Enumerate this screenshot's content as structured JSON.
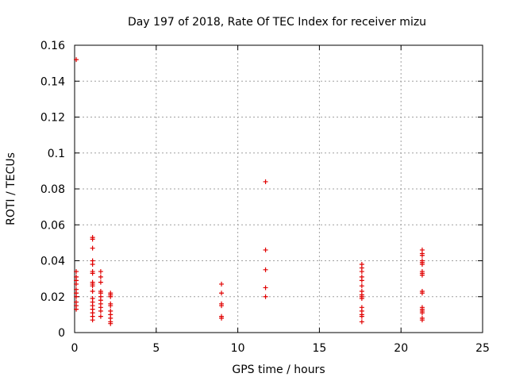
{
  "chart_data": {
    "type": "scatter",
    "title": "Day 197 of 2018, Rate Of TEC Index for receiver mizu",
    "xlabel": "GPS time / hours",
    "ylabel": "ROTI / TECUs",
    "xlim": [
      0,
      25
    ],
    "ylim": [
      0,
      0.16
    ],
    "x_ticks": [
      0,
      5,
      10,
      15,
      20,
      25
    ],
    "y_ticks": [
      0,
      0.02,
      0.04,
      0.06,
      0.08,
      0.1,
      0.12,
      0.14,
      0.16
    ],
    "x_tick_labels": [
      "0",
      "5",
      "10",
      "15",
      "20",
      "25"
    ],
    "y_tick_labels": [
      "0",
      "0.02",
      "0.04",
      "0.06",
      "0.08",
      "0.1",
      "0.12",
      "0.14",
      "0.16"
    ],
    "grid": true,
    "marker": "plus",
    "color": "#e00000",
    "points": [
      [
        0.1,
        0.152
      ],
      [
        0.1,
        0.034
      ],
      [
        0.1,
        0.031
      ],
      [
        0.1,
        0.029
      ],
      [
        0.1,
        0.027
      ],
      [
        0.1,
        0.024
      ],
      [
        0.1,
        0.022
      ],
      [
        0.1,
        0.02
      ],
      [
        0.1,
        0.017
      ],
      [
        0.1,
        0.015
      ],
      [
        0.1,
        0.013
      ],
      [
        1.1,
        0.053
      ],
      [
        1.1,
        0.052
      ],
      [
        1.1,
        0.047
      ],
      [
        1.1,
        0.04
      ],
      [
        1.1,
        0.038
      ],
      [
        1.1,
        0.034
      ],
      [
        1.1,
        0.033
      ],
      [
        1.1,
        0.028
      ],
      [
        1.1,
        0.027
      ],
      [
        1.1,
        0.026
      ],
      [
        1.1,
        0.023
      ],
      [
        1.1,
        0.019
      ],
      [
        1.1,
        0.017
      ],
      [
        1.1,
        0.015
      ],
      [
        1.1,
        0.013
      ],
      [
        1.1,
        0.011
      ],
      [
        1.1,
        0.009
      ],
      [
        1.1,
        0.007
      ],
      [
        1.6,
        0.034
      ],
      [
        1.6,
        0.031
      ],
      [
        1.6,
        0.028
      ],
      [
        1.6,
        0.023
      ],
      [
        1.6,
        0.022
      ],
      [
        1.6,
        0.02
      ],
      [
        1.6,
        0.018
      ],
      [
        1.6,
        0.016
      ],
      [
        1.6,
        0.014
      ],
      [
        1.6,
        0.012
      ],
      [
        1.6,
        0.009
      ],
      [
        2.2,
        0.022
      ],
      [
        2.2,
        0.021
      ],
      [
        2.2,
        0.02
      ],
      [
        2.2,
        0.016
      ],
      [
        2.2,
        0.015
      ],
      [
        2.2,
        0.012
      ],
      [
        2.2,
        0.01
      ],
      [
        2.2,
        0.008
      ],
      [
        2.2,
        0.006
      ],
      [
        2.2,
        0.005
      ],
      [
        9.0,
        0.027
      ],
      [
        9.0,
        0.022
      ],
      [
        9.0,
        0.016
      ],
      [
        9.0,
        0.015
      ],
      [
        9.0,
        0.009
      ],
      [
        9.0,
        0.008
      ],
      [
        11.7,
        0.084
      ],
      [
        11.7,
        0.046
      ],
      [
        11.7,
        0.035
      ],
      [
        11.7,
        0.025
      ],
      [
        11.7,
        0.02
      ],
      [
        17.6,
        0.038
      ],
      [
        17.6,
        0.036
      ],
      [
        17.6,
        0.034
      ],
      [
        17.6,
        0.031
      ],
      [
        17.6,
        0.029
      ],
      [
        17.6,
        0.026
      ],
      [
        17.6,
        0.023
      ],
      [
        17.6,
        0.021
      ],
      [
        17.6,
        0.02
      ],
      [
        17.6,
        0.019
      ],
      [
        17.6,
        0.014
      ],
      [
        17.6,
        0.012
      ],
      [
        17.6,
        0.01
      ],
      [
        17.6,
        0.009
      ],
      [
        17.6,
        0.006
      ],
      [
        21.3,
        0.046
      ],
      [
        21.3,
        0.044
      ],
      [
        21.3,
        0.043
      ],
      [
        21.3,
        0.04
      ],
      [
        21.3,
        0.039
      ],
      [
        21.3,
        0.038
      ],
      [
        21.3,
        0.034
      ],
      [
        21.3,
        0.033
      ],
      [
        21.3,
        0.032
      ],
      [
        21.3,
        0.023
      ],
      [
        21.3,
        0.022
      ],
      [
        21.3,
        0.014
      ],
      [
        21.3,
        0.013
      ],
      [
        21.3,
        0.012
      ],
      [
        21.3,
        0.011
      ],
      [
        21.3,
        0.008
      ],
      [
        21.3,
        0.007
      ]
    ]
  }
}
